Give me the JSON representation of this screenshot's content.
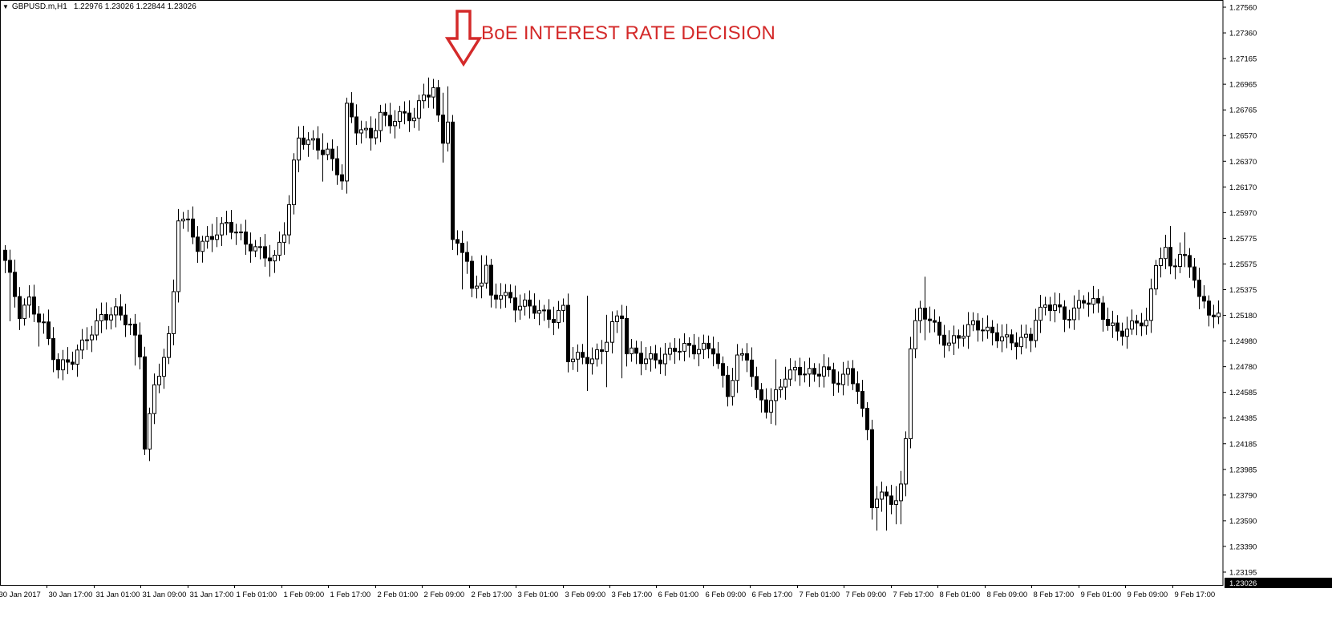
{
  "header": {
    "symbol": "GBPUSD.m,H1",
    "ohlc": "1.22976 1.23026 1.22844 1.23026"
  },
  "annotation": {
    "text": "BoE INTEREST RATE DECISION",
    "color": "#d42a2a",
    "arrow_icon": "down-arrow-icon"
  },
  "chart_data": {
    "type": "candlestick",
    "title": "",
    "xlabel": "",
    "ylabel": "",
    "ylim": [
      1.2302,
      1.2758
    ],
    "grid": false,
    "y_ticks": [
      "1.27560",
      "1.27360",
      "1.27165",
      "1.26965",
      "1.26765",
      "1.26570",
      "1.26370",
      "1.26170",
      "1.25970",
      "1.25775",
      "1.25575",
      "1.25375",
      "1.25180",
      "1.24980",
      "1.24780",
      "1.24585",
      "1.24385",
      "1.24185",
      "1.23985",
      "1.23790",
      "1.23590",
      "1.23390",
      "1.23195"
    ],
    "x_ticks": [
      "30 Jan 2017",
      "30 Jan 17:00",
      "31 Jan 01:00",
      "31 Jan 09:00",
      "31 Jan 17:00",
      "1 Feb 01:00",
      "1 Feb 09:00",
      "1 Feb 17:00",
      "2 Feb 01:00",
      "2 Feb 09:00",
      "2 Feb 17:00",
      "3 Feb 01:00",
      "3 Feb 09:00",
      "3 Feb 17:00",
      "6 Feb 01:00",
      "6 Feb 09:00",
      "6 Feb 17:00",
      "7 Feb 01:00",
      "7 Feb 09:00",
      "7 Feb 17:00",
      "8 Feb 01:00",
      "8 Feb 09:00",
      "8 Feb 17:00",
      "9 Feb 01:00",
      "9 Feb 09:00",
      "9 Feb 17:00"
    ],
    "last_price": "1.23026",
    "anchors": [
      [
        0,
        1.2555
      ],
      [
        3,
        1.2515
      ],
      [
        5,
        1.2528
      ],
      [
        8,
        1.2508
      ],
      [
        11,
        1.247
      ],
      [
        14,
        1.2478
      ],
      [
        17,
        1.25
      ],
      [
        20,
        1.2515
      ],
      [
        23,
        1.2515
      ],
      [
        26,
        1.2505
      ],
      [
        28,
        1.2485
      ],
      [
        29,
        1.2415
      ],
      [
        31,
        1.246
      ],
      [
        34,
        1.2495
      ],
      [
        35,
        1.253
      ],
      [
        36,
        1.259
      ],
      [
        38,
        1.2585
      ],
      [
        40,
        1.257
      ],
      [
        43,
        1.258
      ],
      [
        46,
        1.2585
      ],
      [
        50,
        1.257
      ],
      [
        53,
        1.2568
      ],
      [
        56,
        1.256
      ],
      [
        58,
        1.258
      ],
      [
        59,
        1.26
      ],
      [
        60,
        1.263
      ],
      [
        61,
        1.2652
      ],
      [
        64,
        1.2652
      ],
      [
        67,
        1.2645
      ],
      [
        70,
        1.262
      ],
      [
        71,
        1.2675
      ],
      [
        73,
        1.266
      ],
      [
        76,
        1.2658
      ],
      [
        78,
        1.2675
      ],
      [
        80,
        1.2668
      ],
      [
        83,
        1.267
      ],
      [
        85,
        1.2668
      ],
      [
        87,
        1.269
      ],
      [
        89,
        1.2695
      ],
      [
        90,
        1.2672
      ],
      [
        91,
        1.2655
      ],
      [
        92,
        1.267
      ],
      [
        93,
        1.257
      ],
      [
        95,
        1.2565
      ],
      [
        96,
        1.2555
      ],
      [
        97,
        1.253
      ],
      [
        99,
        1.2545
      ],
      [
        100,
        1.2555
      ],
      [
        101,
        1.253
      ],
      [
        103,
        1.2535
      ],
      [
        106,
        1.252
      ],
      [
        110,
        1.252
      ],
      [
        114,
        1.2515
      ],
      [
        116,
        1.252
      ],
      [
        117,
        1.248
      ],
      [
        120,
        1.2478
      ],
      [
        122,
        1.248
      ],
      [
        124,
        1.249
      ],
      [
        126,
        1.251
      ],
      [
        128,
        1.2515
      ],
      [
        129,
        1.2485
      ],
      [
        132,
        1.2478
      ],
      [
        136,
        1.2483
      ],
      [
        139,
        1.249
      ],
      [
        143,
        1.2485
      ],
      [
        147,
        1.249
      ],
      [
        150,
        1.2455
      ],
      [
        152,
        1.248
      ],
      [
        154,
        1.248
      ],
      [
        156,
        1.245
      ],
      [
        158,
        1.2443
      ],
      [
        160,
        1.2455
      ],
      [
        162,
        1.247
      ],
      [
        164,
        1.247
      ],
      [
        168,
        1.2465
      ],
      [
        170,
        1.2475
      ],
      [
        172,
        1.2465
      ],
      [
        175,
        1.247
      ],
      [
        177,
        1.2455
      ],
      [
        178,
        1.2435
      ],
      [
        179,
        1.242
      ],
      [
        180,
        1.2365
      ],
      [
        181,
        1.237
      ],
      [
        183,
        1.2375
      ],
      [
        185,
        1.237
      ],
      [
        186,
        1.238
      ],
      [
        187,
        1.242
      ],
      [
        188,
        1.249
      ],
      [
        189,
        1.2505
      ],
      [
        190,
        1.2515
      ],
      [
        192,
        1.251
      ],
      [
        194,
        1.25
      ],
      [
        196,
        1.2495
      ],
      [
        198,
        1.25
      ],
      [
        201,
        1.2505
      ],
      [
        204,
        1.25
      ],
      [
        207,
        1.25
      ],
      [
        210,
        1.2495
      ],
      [
        213,
        1.2495
      ],
      [
        214,
        1.251
      ],
      [
        216,
        1.252
      ],
      [
        218,
        1.2525
      ],
      [
        220,
        1.2515
      ],
      [
        222,
        1.252
      ],
      [
        224,
        1.2525
      ],
      [
        227,
        1.252
      ],
      [
        229,
        1.2508
      ],
      [
        231,
        1.2505
      ],
      [
        233,
        1.2505
      ],
      [
        235,
        1.251
      ],
      [
        237,
        1.2505
      ],
      [
        238,
        1.253
      ],
      [
        239,
        1.2555
      ],
      [
        241,
        1.2565
      ],
      [
        242,
        1.2555
      ],
      [
        244,
        1.2565
      ],
      [
        246,
        1.2555
      ],
      [
        247,
        1.2545
      ],
      [
        248,
        1.2525
      ],
      [
        250,
        1.2515
      ],
      [
        252,
        1.2512
      ]
    ],
    "wicks": [
      [
        1,
        1.254,
        1.251
      ],
      [
        7,
        1.2515,
        1.249
      ],
      [
        10,
        1.25,
        1.247
      ],
      [
        12,
        1.2478,
        1.2465
      ],
      [
        19,
        1.252,
        1.25
      ],
      [
        27,
        1.251,
        1.2475
      ],
      [
        29,
        1.2415,
        1.241
      ],
      [
        30,
        1.244,
        1.241
      ],
      [
        44,
        1.2592,
        1.257
      ],
      [
        55,
        1.257,
        1.2545
      ],
      [
        66,
        1.2658,
        1.262
      ],
      [
        71,
        1.268,
        1.2615
      ],
      [
        88,
        1.2702,
        1.269
      ],
      [
        91,
        1.269,
        1.2635
      ],
      [
        92,
        1.2695,
        1.2645
      ],
      [
        95,
        1.2578,
        1.2535
      ],
      [
        99,
        1.2562,
        1.253
      ],
      [
        121,
        1.253,
        1.2455
      ],
      [
        125,
        1.2515,
        1.2458
      ],
      [
        128,
        1.2515,
        1.2465
      ],
      [
        160,
        1.248,
        1.2428
      ],
      [
        181,
        1.238,
        1.2345
      ],
      [
        183,
        1.238,
        1.2345
      ],
      [
        185,
        1.238,
        1.235
      ],
      [
        186,
        1.2392,
        1.235
      ],
      [
        191,
        1.2545,
        1.2495
      ],
      [
        242,
        1.2585,
        1.255
      ],
      [
        245,
        1.258,
        1.2555
      ]
    ]
  }
}
